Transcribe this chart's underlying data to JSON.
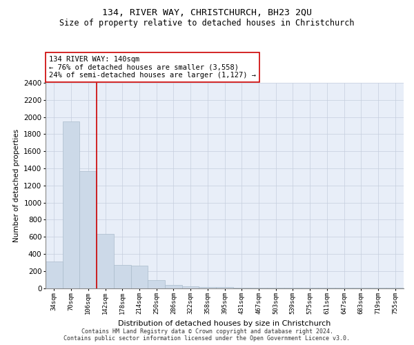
{
  "title": "134, RIVER WAY, CHRISTCHURCH, BH23 2QU",
  "subtitle": "Size of property relative to detached houses in Christchurch",
  "xlabel": "Distribution of detached houses by size in Christchurch",
  "ylabel": "Number of detached properties",
  "categories": [
    "34sqm",
    "70sqm",
    "106sqm",
    "142sqm",
    "178sqm",
    "214sqm",
    "250sqm",
    "286sqm",
    "322sqm",
    "358sqm",
    "395sqm",
    "431sqm",
    "467sqm",
    "503sqm",
    "539sqm",
    "575sqm",
    "611sqm",
    "647sqm",
    "683sqm",
    "719sqm",
    "755sqm"
  ],
  "values": [
    310,
    1950,
    1370,
    630,
    270,
    265,
    90,
    40,
    22,
    15,
    10,
    5,
    5,
    3,
    2,
    2,
    1,
    1,
    1,
    1,
    1
  ],
  "bar_color": "#ccd9e8",
  "bar_edge_color": "#aabccc",
  "vline_color": "#cc0000",
  "vline_x": 2.5,
  "annotation_text": "134 RIVER WAY: 140sqm\n← 76% of detached houses are smaller (3,558)\n24% of semi-detached houses are larger (1,127) →",
  "annotation_box_facecolor": "#ffffff",
  "annotation_box_edgecolor": "#cc0000",
  "ylim": [
    0,
    2400
  ],
  "yticks": [
    0,
    200,
    400,
    600,
    800,
    1000,
    1200,
    1400,
    1600,
    1800,
    2000,
    2200,
    2400
  ],
  "grid_color": "#c5cedd",
  "background_color": "#e8eef8",
  "footer_text": "Contains HM Land Registry data © Crown copyright and database right 2024.\nContains public sector information licensed under the Open Government Licence v3.0.",
  "title_fontsize": 9.5,
  "subtitle_fontsize": 8.5,
  "xlabel_fontsize": 8,
  "ylabel_fontsize": 7.5,
  "ytick_fontsize": 7.5,
  "xtick_fontsize": 6.5,
  "annotation_fontsize": 7.5,
  "footer_fontsize": 6
}
